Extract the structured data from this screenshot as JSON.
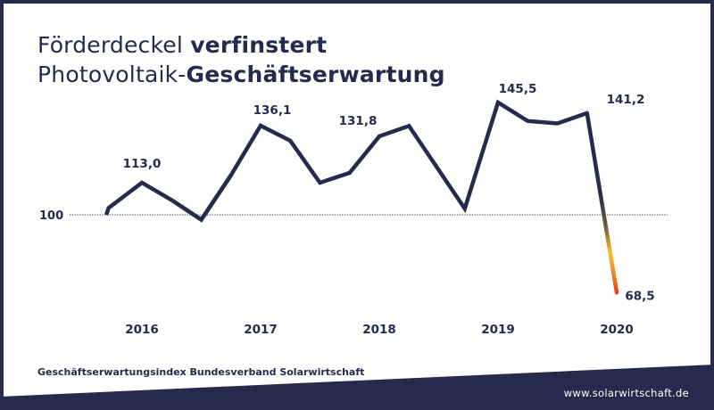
{
  "header": {
    "title_line1_regular": "Förderdeckel",
    "title_line1_bold": "verfinstert",
    "title_line2_regular": "Photovoltaik-",
    "title_line2_bold": "Geschäftserwartung"
  },
  "source": "Geschäftserwartungsindex Bundesverband Solarwirtschaft",
  "footer": {
    "url": "www.solarwirtschaft.de"
  },
  "colors": {
    "navy": "#262a4d",
    "gradient_yellow": "#f2c12e",
    "gradient_orange": "#f07a1a",
    "gradient_red": "#e5261f"
  },
  "chart_data": {
    "type": "line",
    "title": "",
    "xlabel": "",
    "ylabel": "",
    "x_tick_labels": [
      "2016",
      "2017",
      "2018",
      "2019",
      "2020"
    ],
    "x_tick_positions": [
      2016.0,
      2017.0,
      2018.0,
      2019.0,
      2020.0
    ],
    "reference_line": {
      "value": 100,
      "label": "100",
      "style": "dotted"
    },
    "ylim": [
      60,
      150
    ],
    "grid": false,
    "series": [
      {
        "x": [
          2015.7,
          2015.72,
          2016.0,
          2016.25,
          2016.5,
          2016.75,
          2017.0,
          2017.25,
          2017.5,
          2017.75,
          2018.0,
          2018.25,
          2018.72,
          2019.0,
          2019.25,
          2019.5,
          2019.75,
          2020.0
        ],
        "values": [
          100.0,
          102.8,
          113.0,
          106.0,
          98.0,
          116.0,
          136.1,
          130.0,
          113.0,
          117.0,
          131.8,
          136.0,
          102.5,
          145.5,
          138.0,
          137.0,
          141.2,
          68.5
        ]
      }
    ],
    "data_labels": [
      {
        "x": 2016.0,
        "y": 113.0,
        "text": "113,0"
      },
      {
        "x": 2017.0,
        "y": 136.1,
        "text": "136,1"
      },
      {
        "x": 2018.0,
        "y": 131.8,
        "text": "131,8"
      },
      {
        "x": 2019.0,
        "y": 145.5,
        "text": "145,5"
      },
      {
        "x": 2020.0,
        "y": 141.2,
        "text": "141,2"
      },
      {
        "x": 2020.0,
        "y": 68.5,
        "text": "68,5"
      }
    ]
  }
}
